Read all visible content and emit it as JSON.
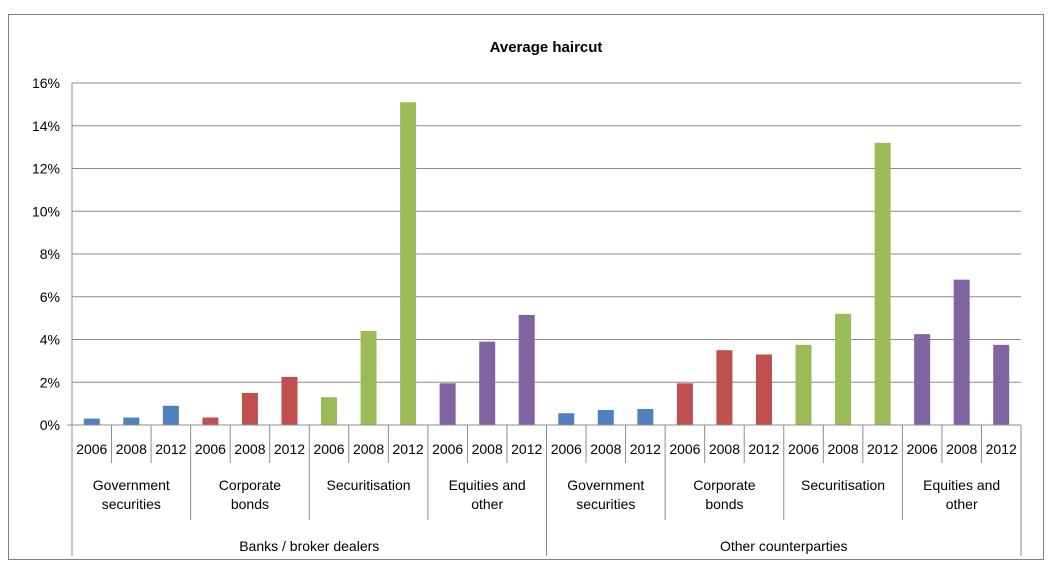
{
  "chart_data": {
    "type": "bar",
    "title": "Average haircut",
    "ylim": [
      0,
      16
    ],
    "yticks": [
      "0%",
      "2%",
      "4%",
      "6%",
      "8%",
      "10%",
      "12%",
      "14%",
      "16%"
    ],
    "grid": true,
    "years": [
      "2006",
      "2008",
      "2012"
    ],
    "groups": [
      {
        "name": "Banks / broker dealers",
        "categories": [
          {
            "label": [
              "Government",
              "securities"
            ],
            "color": "#4f81bd",
            "values": [
              0.3,
              0.35,
              0.9
            ]
          },
          {
            "label": [
              "Corporate",
              "bonds"
            ],
            "color": "#c0504d",
            "values": [
              0.35,
              1.5,
              2.25
            ]
          },
          {
            "label": [
              "Securitisation"
            ],
            "color": "#9bbb59",
            "values": [
              1.3,
              4.4,
              15.1
            ]
          },
          {
            "label": [
              "Equities and",
              "other"
            ],
            "color": "#8064a2",
            "values": [
              1.95,
              3.9,
              5.15
            ]
          }
        ]
      },
      {
        "name": "Other counterparties",
        "categories": [
          {
            "label": [
              "Government",
              "securities"
            ],
            "color": "#4f81bd",
            "values": [
              0.55,
              0.7,
              0.75
            ]
          },
          {
            "label": [
              "Corporate",
              "bonds"
            ],
            "color": "#c0504d",
            "values": [
              1.95,
              3.5,
              3.3
            ]
          },
          {
            "label": [
              "Securitisation"
            ],
            "color": "#9bbb59",
            "values": [
              3.75,
              5.2,
              13.2
            ]
          },
          {
            "label": [
              "Equities and",
              "other"
            ],
            "color": "#8064a2",
            "values": [
              4.25,
              6.8,
              3.75
            ]
          }
        ]
      }
    ]
  }
}
